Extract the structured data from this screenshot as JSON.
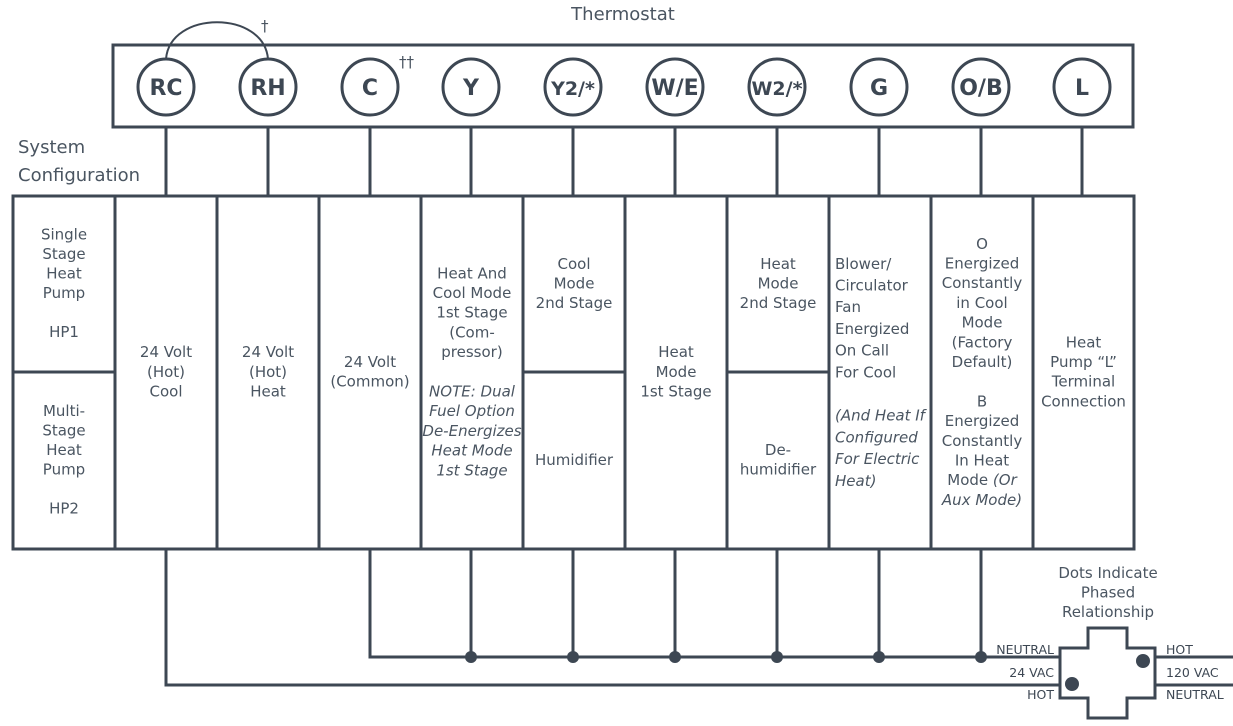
{
  "title": "Thermostat",
  "system_configuration": "System Configuration",
  "dagger_rh": "†",
  "dagger_c": "††",
  "terminals": [
    "RC",
    "RH",
    "C",
    "Y",
    "Y2/*",
    "W/E",
    "W2/*",
    "G",
    "O/B",
    "L"
  ],
  "config_cells": [
    {
      "top": [
        [
          "Single"
        ],
        [
          "Stage"
        ],
        [
          "Heat"
        ],
        [
          "Pump"
        ],
        [
          ""
        ],
        [
          "HP1"
        ]
      ],
      "bottom": [
        [
          "Multi-"
        ],
        [
          "Stage"
        ],
        [
          "Heat"
        ],
        [
          "Pump"
        ],
        [
          ""
        ],
        [
          "HP2"
        ]
      ]
    },
    {
      "full": [
        [
          "24 Volt"
        ],
        [
          "(Hot)"
        ],
        [
          "Cool"
        ]
      ]
    },
    {
      "full": [
        [
          "24 Volt"
        ],
        [
          "(Hot)"
        ],
        [
          "Heat"
        ]
      ]
    },
    {
      "full": [
        [
          "24 Volt"
        ],
        [
          "(Common)"
        ]
      ]
    },
    {
      "full": [
        [
          "Heat And"
        ],
        [
          "Cool Mode"
        ],
        [
          "1st Stage"
        ],
        [
          "(Com-"
        ],
        [
          "pressor)"
        ],
        [
          ""
        ],
        [
          {
            "text": "NOTE: Dual",
            "italic": true
          }
        ],
        [
          {
            "text": "Fuel Option",
            "italic": true
          }
        ],
        [
          {
            "text": "De-Energizes",
            "italic": true
          }
        ],
        [
          {
            "text": "Heat Mode",
            "italic": true
          }
        ],
        [
          {
            "text": "1st Stage",
            "italic": true
          }
        ]
      ]
    },
    {
      "top": [
        [
          "Cool"
        ],
        [
          "Mode"
        ],
        [
          "2nd Stage"
        ]
      ],
      "bottom": [
        [
          "Humidifier"
        ]
      ]
    },
    {
      "full": [
        [
          "Heat"
        ],
        [
          "Mode"
        ],
        [
          "1st Stage"
        ]
      ]
    },
    {
      "top": [
        [
          "Heat"
        ],
        [
          "Mode"
        ],
        [
          "2nd Stage"
        ]
      ],
      "bottom": [
        [
          "De-"
        ],
        [
          "humidifier"
        ]
      ]
    },
    {
      "full": [
        [
          "Blower/"
        ],
        [
          "Circulator"
        ],
        [
          "Fan"
        ],
        [
          "Energized"
        ],
        [
          "On Call"
        ],
        [
          "For Cool"
        ],
        [
          ""
        ],
        [
          {
            "text": "(And Heat If",
            "italic": true
          }
        ],
        [
          {
            "text": "Configured",
            "italic": true
          }
        ],
        [
          {
            "text": "For Electric",
            "italic": true
          }
        ],
        [
          {
            "text": "Heat)",
            "italic": true
          }
        ]
      ],
      "align": "left"
    },
    {
      "full": [
        [
          "O"
        ],
        [
          "Energized"
        ],
        [
          "Constantly"
        ],
        [
          "in Cool"
        ],
        [
          "Mode"
        ],
        [
          "(Factory"
        ],
        [
          "Default)"
        ],
        [
          ""
        ],
        [
          "B"
        ],
        [
          "Energized"
        ],
        [
          "Constantly"
        ],
        [
          "In Heat"
        ],
        [
          "Mode ",
          {
            "text": "(Or",
            "italic": true
          }
        ],
        [
          {
            "text": "Aux Mode)",
            "italic": true
          }
        ]
      ]
    },
    {
      "full": [
        [
          "Heat"
        ],
        [
          "Pump “L”"
        ],
        [
          "Terminal"
        ],
        [
          "Connection"
        ]
      ]
    }
  ],
  "transformer": {
    "note": [
      "Dots Indicate",
      "Phased",
      "Relationship"
    ],
    "left_top": "NEUTRAL",
    "left_mid": "24 VAC",
    "left_bottom": "HOT",
    "right_top": "HOT",
    "right_mid": "120 VAC",
    "right_bottom": "NEUTRAL"
  },
  "colors": {
    "line": "#3d4753",
    "text": "#4a5561"
  }
}
